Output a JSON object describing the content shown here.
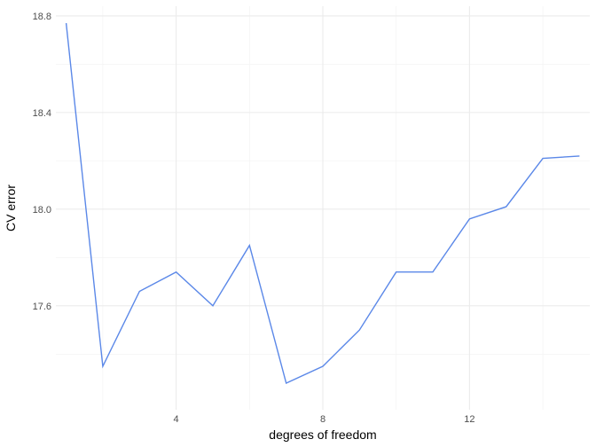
{
  "chart_data": {
    "type": "line",
    "title": "",
    "xlabel": "degrees of freedom",
    "ylabel": "CV error",
    "xlim": [
      0.72,
      15.28
    ],
    "ylim": [
      17.17,
      18.84
    ],
    "x_major_ticks": [
      4,
      8,
      12
    ],
    "x_minor_ticks": [
      2,
      6,
      10,
      14
    ],
    "y_major_ticks": [
      17.6,
      18.0,
      18.4,
      18.8
    ],
    "y_minor_ticks": [
      17.4,
      17.8,
      18.2,
      18.6
    ],
    "x_tick_labels": [
      "4",
      "8",
      "12"
    ],
    "y_tick_labels": [
      "17.6",
      "18.0",
      "18.4",
      "18.8"
    ],
    "grid": true,
    "legend": "none",
    "series": [
      {
        "color": "#5b88e8",
        "x": [
          1,
          2,
          3,
          4,
          5,
          6,
          7,
          8,
          9,
          10,
          11,
          12,
          13,
          14,
          15
        ],
        "y": [
          18.77,
          17.35,
          17.66,
          17.74,
          17.6,
          17.85,
          17.28,
          17.35,
          17.5,
          17.74,
          17.74,
          17.96,
          18.01,
          18.21,
          18.22
        ]
      }
    ]
  }
}
